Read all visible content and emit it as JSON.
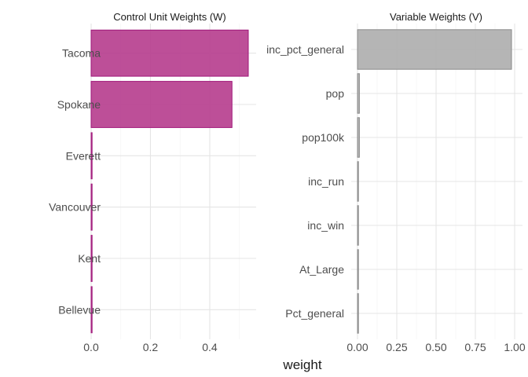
{
  "chart_data": [
    {
      "type": "bar",
      "orientation": "horizontal",
      "title": "Control Unit Weights (W)",
      "categories": [
        "Tacoma",
        "Spokane",
        "Everett",
        "Vancouver",
        "Kent",
        "Bellevue"
      ],
      "values": [
        0.53,
        0.475,
        0.002,
        0.002,
        0.002,
        0.002
      ],
      "xlim": [
        0,
        0.53
      ],
      "xticks": [
        0,
        0.2,
        0.4
      ],
      "xtick_labels": [
        "0.0",
        "0.2",
        "0.4"
      ],
      "fill": "#b63c8d",
      "stroke": "#a0177a",
      "grid": true
    },
    {
      "type": "bar",
      "orientation": "horizontal",
      "title": "Variable Weights (V)",
      "categories": [
        "inc_pct_general",
        "pop",
        "pop100k",
        "inc_run",
        "inc_win",
        "At_Large",
        "Pct_general"
      ],
      "values": [
        0.98,
        0.012,
        0.012,
        0.003,
        0.002,
        0.002,
        0.002
      ],
      "xlim": [
        0,
        1
      ],
      "xticks": [
        0,
        0.25,
        0.5,
        0.75,
        1
      ],
      "xtick_labels": [
        "0.00",
        "0.25",
        "0.50",
        "0.75",
        "1.00"
      ],
      "fill": "#adadad",
      "stroke": "#8a8a8a",
      "grid": true
    }
  ],
  "shared": {
    "xlabel": "weight"
  }
}
